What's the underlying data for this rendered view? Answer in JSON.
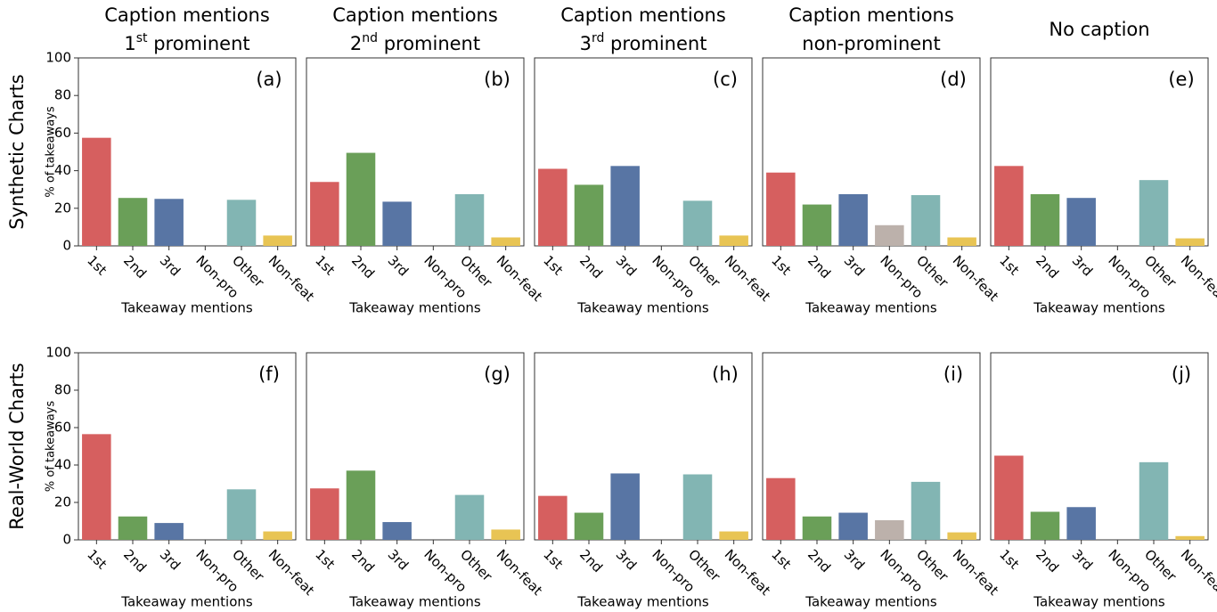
{
  "row_labels": [
    "Synthetic Charts",
    "Real-World Charts"
  ],
  "chart_data": [
    {
      "type": "bar",
      "title": [
        "Caption mentions",
        "1st prominent"
      ],
      "panel": "(a)",
      "ylabel": "% of takeaways",
      "xlabel": "Takeaway mentions",
      "categories": [
        "1st",
        "2nd",
        "3rd",
        "Non-pro",
        "Other",
        "Non-feat"
      ],
      "values": [
        57.5,
        25.5,
        25,
        0,
        24.5,
        5.5
      ],
      "colors": [
        "#d65f5f",
        "#6a9f58",
        "#5875a4",
        "#bcb1ab",
        "#82b5b3",
        "#e8c454"
      ],
      "ylim": [
        0,
        100
      ],
      "yticks": [
        0,
        20,
        40,
        60,
        80,
        100
      ]
    },
    {
      "type": "bar",
      "title": [
        "Caption mentions",
        "2nd prominent"
      ],
      "panel": "(b)",
      "xlabel": "Takeaway mentions",
      "categories": [
        "1st",
        "2nd",
        "3rd",
        "Non-pro",
        "Other",
        "Non-feat"
      ],
      "values": [
        34,
        49.5,
        23.5,
        0,
        27.5,
        4.5
      ],
      "colors": [
        "#d65f5f",
        "#6a9f58",
        "#5875a4",
        "#bcb1ab",
        "#82b5b3",
        "#e8c454"
      ],
      "ylim": [
        0,
        100
      ]
    },
    {
      "type": "bar",
      "title": [
        "Caption mentions",
        "3rd prominent"
      ],
      "panel": "(c)",
      "xlabel": "Takeaway mentions",
      "categories": [
        "1st",
        "2nd",
        "3rd",
        "Non-pro",
        "Other",
        "Non-feat"
      ],
      "values": [
        41,
        32.5,
        42.5,
        0,
        24,
        5.5
      ],
      "colors": [
        "#d65f5f",
        "#6a9f58",
        "#5875a4",
        "#bcb1ab",
        "#82b5b3",
        "#e8c454"
      ],
      "ylim": [
        0,
        100
      ]
    },
    {
      "type": "bar",
      "title": [
        "Caption mentions",
        "non-prominent"
      ],
      "panel": "(d)",
      "xlabel": "Takeaway mentions",
      "categories": [
        "1st",
        "2nd",
        "3rd",
        "Non-pro",
        "Other",
        "Non-feat"
      ],
      "values": [
        39,
        22,
        27.5,
        11,
        27,
        4.5
      ],
      "colors": [
        "#d65f5f",
        "#6a9f58",
        "#5875a4",
        "#bcb1ab",
        "#82b5b3",
        "#e8c454"
      ],
      "ylim": [
        0,
        100
      ]
    },
    {
      "type": "bar",
      "title": [
        "No caption"
      ],
      "panel": "(e)",
      "xlabel": "Takeaway mentions",
      "categories": [
        "1st",
        "2nd",
        "3rd",
        "Non-pro",
        "Other",
        "Non-feat"
      ],
      "values": [
        42.5,
        27.5,
        25.5,
        0,
        35,
        4
      ],
      "colors": [
        "#d65f5f",
        "#6a9f58",
        "#5875a4",
        "#bcb1ab",
        "#82b5b3",
        "#e8c454"
      ],
      "ylim": [
        0,
        100
      ]
    },
    {
      "type": "bar",
      "panel": "(f)",
      "ylabel": "% of takeaways",
      "xlabel": "Takeaway mentions",
      "categories": [
        "1st",
        "2nd",
        "3rd",
        "Non-pro",
        "Other",
        "Non-feat"
      ],
      "values": [
        56.5,
        12.5,
        9,
        0,
        27,
        4.5
      ],
      "colors": [
        "#d65f5f",
        "#6a9f58",
        "#5875a4",
        "#bcb1ab",
        "#82b5b3",
        "#e8c454"
      ],
      "ylim": [
        0,
        100
      ],
      "yticks": [
        0,
        20,
        40,
        60,
        80,
        100
      ]
    },
    {
      "type": "bar",
      "panel": "(g)",
      "xlabel": "Takeaway mentions",
      "categories": [
        "1st",
        "2nd",
        "3rd",
        "Non-pro",
        "Other",
        "Non-feat"
      ],
      "values": [
        27.5,
        37,
        9.5,
        0,
        24,
        5.5
      ],
      "colors": [
        "#d65f5f",
        "#6a9f58",
        "#5875a4",
        "#bcb1ab",
        "#82b5b3",
        "#e8c454"
      ],
      "ylim": [
        0,
        100
      ]
    },
    {
      "type": "bar",
      "panel": "(h)",
      "xlabel": "Takeaway mentions",
      "categories": [
        "1st",
        "2nd",
        "3rd",
        "Non-pro",
        "Other",
        "Non-feat"
      ],
      "values": [
        23.5,
        14.5,
        35.5,
        0,
        35,
        4.5
      ],
      "colors": [
        "#d65f5f",
        "#6a9f58",
        "#5875a4",
        "#bcb1ab",
        "#82b5b3",
        "#e8c454"
      ],
      "ylim": [
        0,
        100
      ]
    },
    {
      "type": "bar",
      "panel": "(i)",
      "xlabel": "Takeaway mentions",
      "categories": [
        "1st",
        "2nd",
        "3rd",
        "Non-pro",
        "Other",
        "Non-feat"
      ],
      "values": [
        33,
        12.5,
        14.5,
        10.5,
        31,
        4
      ],
      "colors": [
        "#d65f5f",
        "#6a9f58",
        "#5875a4",
        "#bcb1ab",
        "#82b5b3",
        "#e8c454"
      ],
      "ylim": [
        0,
        100
      ]
    },
    {
      "type": "bar",
      "panel": "(j)",
      "xlabel": "Takeaway mentions",
      "categories": [
        "1st",
        "2nd",
        "3rd",
        "Non-pro",
        "Other",
        "Non-feat"
      ],
      "values": [
        45,
        15,
        17.5,
        0,
        41.5,
        2
      ],
      "colors": [
        "#d65f5f",
        "#6a9f58",
        "#5875a4",
        "#bcb1ab",
        "#82b5b3",
        "#e8c454"
      ],
      "ylim": [
        0,
        100
      ]
    }
  ]
}
